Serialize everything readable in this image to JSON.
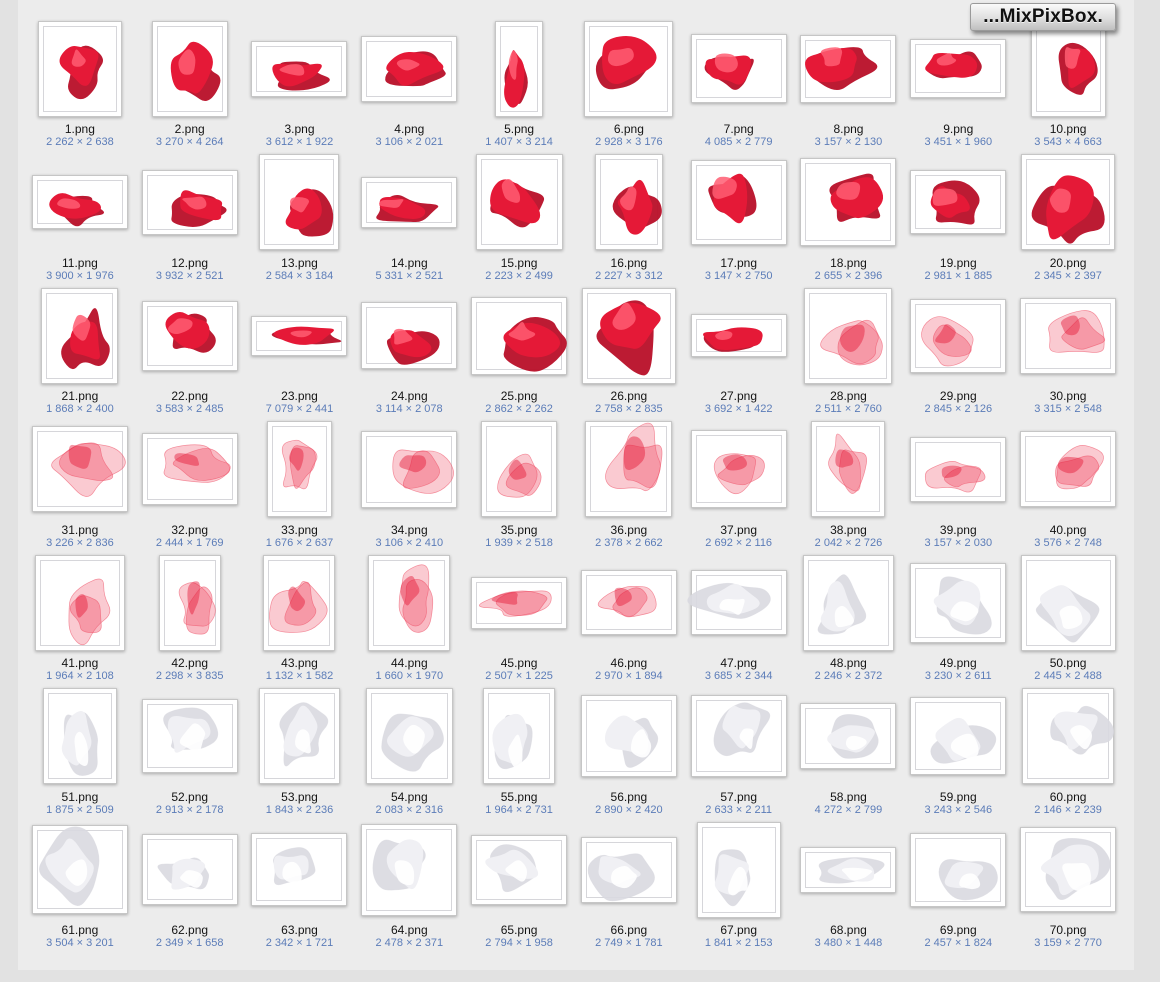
{
  "logo": {
    "text": "...MixPixBox."
  },
  "colors": {
    "page_bg": "#e2e2e2",
    "panel_bg": "#ececec",
    "card_bg": "#ffffff",
    "card_border": "#c6c6c6",
    "inner_border": "#d6d6da",
    "filename_color": "#141414",
    "dims_color": "#5b7cb8",
    "fabric_red": "#e51937",
    "fabric_red_dark": "#b80f28",
    "fabric_red_light": "#ff5d72",
    "fabric_red_sheer": "#ef5168",
    "fabric_white": "#f0f0f4",
    "fabric_white_shade": "#d9d9e0"
  },
  "items": [
    {
      "name": "1.png",
      "dims": "2 262 × 2 638",
      "fabric": "red"
    },
    {
      "name": "2.png",
      "dims": "3 270 × 4 264",
      "fabric": "red"
    },
    {
      "name": "3.png",
      "dims": "3 612 × 1 922",
      "fabric": "red"
    },
    {
      "name": "4.png",
      "dims": "3 106 × 2 021",
      "fabric": "red"
    },
    {
      "name": "5.png",
      "dims": "1 407 × 3 214",
      "fabric": "red"
    },
    {
      "name": "6.png",
      "dims": "2 928 × 3 176",
      "fabric": "red"
    },
    {
      "name": "7.png",
      "dims": "4 085 × 2 779",
      "fabric": "red"
    },
    {
      "name": "8.png",
      "dims": "3 157 × 2 130",
      "fabric": "red"
    },
    {
      "name": "9.png",
      "dims": "3 451 × 1 960",
      "fabric": "red"
    },
    {
      "name": "10.png",
      "dims": "3 543 × 4 663",
      "fabric": "red"
    },
    {
      "name": "11.png",
      "dims": "3 900 × 1 976",
      "fabric": "red"
    },
    {
      "name": "12.png",
      "dims": "3 932 × 2 521",
      "fabric": "red"
    },
    {
      "name": "13.png",
      "dims": "2 584 × 3 184",
      "fabric": "red"
    },
    {
      "name": "14.png",
      "dims": "5 331 × 2 521",
      "fabric": "red"
    },
    {
      "name": "15.png",
      "dims": "2 223 × 2 499",
      "fabric": "red"
    },
    {
      "name": "16.png",
      "dims": "2 227 × 3 312",
      "fabric": "red"
    },
    {
      "name": "17.png",
      "dims": "3 147 × 2 750",
      "fabric": "red"
    },
    {
      "name": "18.png",
      "dims": "2 655 × 2 396",
      "fabric": "red"
    },
    {
      "name": "19.png",
      "dims": "2 981 × 1 885",
      "fabric": "red"
    },
    {
      "name": "20.png",
      "dims": "2 345 × 2 397",
      "fabric": "red"
    },
    {
      "name": "21.png",
      "dims": "1 868 × 2 400",
      "fabric": "red"
    },
    {
      "name": "22.png",
      "dims": "3 583 × 2 485",
      "fabric": "red"
    },
    {
      "name": "23.png",
      "dims": "7 079 × 2 441",
      "fabric": "red"
    },
    {
      "name": "24.png",
      "dims": "3 114 × 2 078",
      "fabric": "red"
    },
    {
      "name": "25.png",
      "dims": "2 862 × 2 262",
      "fabric": "red"
    },
    {
      "name": "26.png",
      "dims": "2 758 × 2 835",
      "fabric": "red"
    },
    {
      "name": "27.png",
      "dims": "3 692 × 1 422",
      "fabric": "red"
    },
    {
      "name": "28.png",
      "dims": "2 511 × 2 760",
      "fabric": "red-sheer"
    },
    {
      "name": "29.png",
      "dims": "2 845 × 2 126",
      "fabric": "red-sheer"
    },
    {
      "name": "30.png",
      "dims": "3 315 × 2 548",
      "fabric": "red-sheer"
    },
    {
      "name": "31.png",
      "dims": "3 226 × 2 836",
      "fabric": "red-sheer"
    },
    {
      "name": "32.png",
      "dims": "2 444 × 1 769",
      "fabric": "red-sheer"
    },
    {
      "name": "33.png",
      "dims": "1 676 × 2 637",
      "fabric": "red-sheer"
    },
    {
      "name": "34.png",
      "dims": "3 106 × 2 410",
      "fabric": "red-sheer"
    },
    {
      "name": "35.png",
      "dims": "1 939 × 2 518",
      "fabric": "red-sheer"
    },
    {
      "name": "36.png",
      "dims": "2 378 × 2 662",
      "fabric": "red-sheer"
    },
    {
      "name": "37.png",
      "dims": "2 692 × 2 116",
      "fabric": "red-sheer"
    },
    {
      "name": "38.png",
      "dims": "2 042 × 2 726",
      "fabric": "red-sheer"
    },
    {
      "name": "39.png",
      "dims": "3 157 × 2 030",
      "fabric": "red-sheer"
    },
    {
      "name": "40.png",
      "dims": "3 576 × 2 748",
      "fabric": "red-sheer"
    },
    {
      "name": "41.png",
      "dims": "1 964 × 2 108",
      "fabric": "red-sheer"
    },
    {
      "name": "42.png",
      "dims": "2 298 × 3 835",
      "fabric": "red-sheer"
    },
    {
      "name": "43.png",
      "dims": "1 132 × 1 582",
      "fabric": "red-sheer"
    },
    {
      "name": "44.png",
      "dims": "1 660 × 1 970",
      "fabric": "red-sheer"
    },
    {
      "name": "45.png",
      "dims": "2 507 × 1 225",
      "fabric": "red-sheer"
    },
    {
      "name": "46.png",
      "dims": "2 970 × 1 894",
      "fabric": "red-sheer"
    },
    {
      "name": "47.png",
      "dims": "3 685 × 2 344",
      "fabric": "white"
    },
    {
      "name": "48.png",
      "dims": "2 246 × 2 372",
      "fabric": "white"
    },
    {
      "name": "49.png",
      "dims": "3 230 × 2 611",
      "fabric": "white"
    },
    {
      "name": "50.png",
      "dims": "2 445 × 2 488",
      "fabric": "white"
    },
    {
      "name": "51.png",
      "dims": "1 875 × 2 509",
      "fabric": "white"
    },
    {
      "name": "52.png",
      "dims": "2 913 × 2 178",
      "fabric": "white"
    },
    {
      "name": "53.png",
      "dims": "1 843 × 2 236",
      "fabric": "white"
    },
    {
      "name": "54.png",
      "dims": "2 083 × 2 316",
      "fabric": "white"
    },
    {
      "name": "55.png",
      "dims": "1 964 × 2 731",
      "fabric": "white"
    },
    {
      "name": "56.png",
      "dims": "2 890 × 2 420",
      "fabric": "white"
    },
    {
      "name": "57.png",
      "dims": "2 633 × 2 211",
      "fabric": "white"
    },
    {
      "name": "58.png",
      "dims": "4 272 × 2 799",
      "fabric": "white"
    },
    {
      "name": "59.png",
      "dims": "3 243 × 2 546",
      "fabric": "white"
    },
    {
      "name": "60.png",
      "dims": "2 146 × 2 239",
      "fabric": "white"
    },
    {
      "name": "61.png",
      "dims": "3 504 × 3 201",
      "fabric": "white"
    },
    {
      "name": "62.png",
      "dims": "2 349 × 1 658",
      "fabric": "white"
    },
    {
      "name": "63.png",
      "dims": "2 342 × 1 721",
      "fabric": "white"
    },
    {
      "name": "64.png",
      "dims": "2 478 × 2 371",
      "fabric": "white"
    },
    {
      "name": "65.png",
      "dims": "2 794 × 1 958",
      "fabric": "white"
    },
    {
      "name": "66.png",
      "dims": "2 749 × 1 781",
      "fabric": "white"
    },
    {
      "name": "67.png",
      "dims": "1 841 × 2 153",
      "fabric": "white"
    },
    {
      "name": "68.png",
      "dims": "3 480 × 1 448",
      "fabric": "white"
    },
    {
      "name": "69.png",
      "dims": "2 457 × 1 824",
      "fabric": "white"
    },
    {
      "name": "70.png",
      "dims": "3 159 × 2 770",
      "fabric": "white"
    }
  ]
}
